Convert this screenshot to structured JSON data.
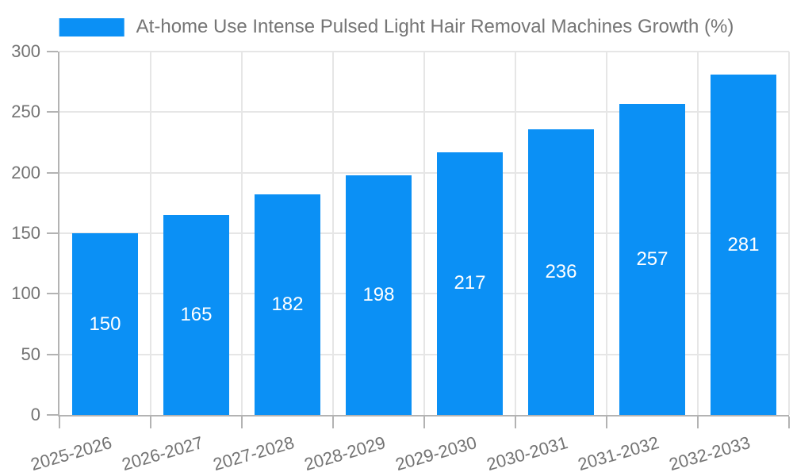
{
  "legend": {
    "label": "At-home Use Intense Pulsed Light Hair Removal Machines Growth (%)"
  },
  "colors": {
    "bar": "#0b90f5",
    "grid": "#e6e6e6",
    "axis": "#b3b3b3",
    "tick_text": "#737373",
    "legend_text": "#757575",
    "value_text": "#ffffff",
    "background": "#ffffff"
  },
  "chart_data": {
    "type": "bar",
    "title": "",
    "categories": [
      "2025-2026",
      "2026-2027",
      "2027-2028",
      "2028-2029",
      "2029-2030",
      "2030-2031",
      "2031-2032",
      "2032-2033"
    ],
    "series": [
      {
        "name": "At-home Use Intense Pulsed Light Hair Removal Machines Growth (%)",
        "values": [
          150,
          165,
          182,
          198,
          217,
          236,
          257,
          281
        ]
      }
    ],
    "xlabel": "",
    "ylabel": "",
    "ylim": [
      0,
      300
    ],
    "yticks": [
      0,
      50,
      100,
      150,
      200,
      250,
      300
    ],
    "grid": true,
    "legend_position": "top-center",
    "value_labels": "inside-center",
    "x_tick_rotation_deg": -16,
    "bar_width_fraction": 0.72
  }
}
